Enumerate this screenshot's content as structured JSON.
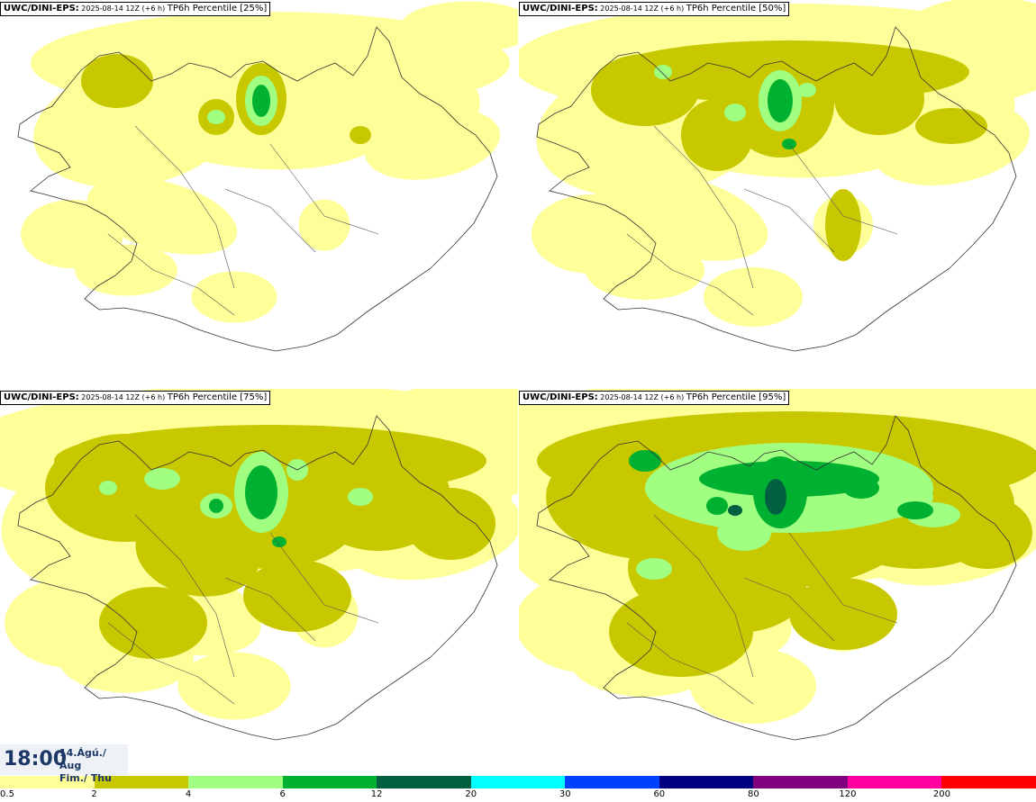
{
  "panels": [
    {
      "model": "UWC/DINI-EPS:",
      "run": "2025-08-14 12Z (+6 h)",
      "field": "TP6h Percentile [25%]",
      "level": 1
    },
    {
      "model": "UWC/DINI-EPS:",
      "run": "2025-08-14 12Z (+6 h)",
      "field": "TP6h Percentile [50%]",
      "level": 2
    },
    {
      "model": "UWC/DINI-EPS:",
      "run": "2025-08-14 12Z (+6 h)",
      "field": "TP6h Percentile [75%]",
      "level": 3
    },
    {
      "model": "UWC/DINI-EPS:",
      "run": "2025-08-14 12Z (+6 h)",
      "field": "TP6h Percentile [95%]",
      "level": 4
    }
  ],
  "valid_time": {
    "time": "18:00",
    "date_line1": "14.Ágú./ Aug",
    "date_line2": "Fim./ Thu"
  },
  "legend": {
    "ticks": [
      "0.5",
      "2",
      "4",
      "6",
      "12",
      "20",
      "30",
      "60",
      "80",
      "120",
      "200"
    ],
    "colors": [
      "#ffff99",
      "#c8c800",
      "#a0ff80",
      "#00b030",
      "#006040",
      "#00ffff",
      "#0040ff",
      "#000080",
      "#800080",
      "#ff00a0",
      "#ff0000"
    ]
  }
}
